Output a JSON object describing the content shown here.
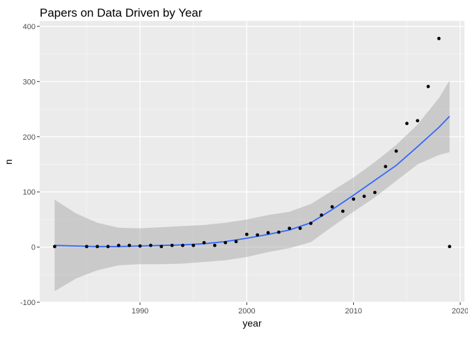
{
  "chart_data": {
    "type": "scatter",
    "title": "Papers on Data Driven by Year",
    "xlabel": "year",
    "ylabel": "n",
    "xlim": [
      1980.6,
      2020.4
    ],
    "ylim": [
      -100,
      410
    ],
    "x_ticks": [
      1990,
      2000,
      2010,
      2020
    ],
    "y_ticks": [
      -100,
      0,
      100,
      200,
      300,
      400
    ],
    "grid": true,
    "legend": "none",
    "colors": {
      "panel": "#ebebeb",
      "grid_major": "#ffffff",
      "grid_minor": "#f5f5f5",
      "points": "#000000",
      "smooth_line": "#3366ff",
      "ribbon": "#999999"
    },
    "points": [
      {
        "x": 1982,
        "y": 1
      },
      {
        "x": 1985,
        "y": 1
      },
      {
        "x": 1986,
        "y": 1
      },
      {
        "x": 1987,
        "y": 1
      },
      {
        "x": 1988,
        "y": 3
      },
      {
        "x": 1989,
        "y": 3
      },
      {
        "x": 1990,
        "y": 2
      },
      {
        "x": 1991,
        "y": 3
      },
      {
        "x": 1992,
        "y": 1
      },
      {
        "x": 1993,
        "y": 3
      },
      {
        "x": 1994,
        "y": 3
      },
      {
        "x": 1995,
        "y": 3
      },
      {
        "x": 1996,
        "y": 8
      },
      {
        "x": 1997,
        "y": 3
      },
      {
        "x": 1998,
        "y": 8
      },
      {
        "x": 1999,
        "y": 10
      },
      {
        "x": 2000,
        "y": 23
      },
      {
        "x": 2001,
        "y": 22
      },
      {
        "x": 2002,
        "y": 26
      },
      {
        "x": 2003,
        "y": 27
      },
      {
        "x": 2004,
        "y": 34
      },
      {
        "x": 2005,
        "y": 34
      },
      {
        "x": 2006,
        "y": 43
      },
      {
        "x": 2007,
        "y": 58
      },
      {
        "x": 2008,
        "y": 73
      },
      {
        "x": 2009,
        "y": 65
      },
      {
        "x": 2010,
        "y": 87
      },
      {
        "x": 2011,
        "y": 92
      },
      {
        "x": 2012,
        "y": 99
      },
      {
        "x": 2013,
        "y": 146
      },
      {
        "x": 2014,
        "y": 174
      },
      {
        "x": 2015,
        "y": 224
      },
      {
        "x": 2016,
        "y": 229
      },
      {
        "x": 2017,
        "y": 291
      },
      {
        "x": 2018,
        "y": 378
      },
      {
        "x": 2019,
        "y": 1
      }
    ],
    "smooth": [
      {
        "x": 1982,
        "y": 3,
        "lo": -80,
        "hi": 86
      },
      {
        "x": 1984,
        "y": 2,
        "lo": -57,
        "hi": 61
      },
      {
        "x": 1986,
        "y": 1,
        "lo": -42,
        "hi": 44
      },
      {
        "x": 1988,
        "y": 1,
        "lo": -33,
        "hi": 35
      },
      {
        "x": 1990,
        "y": 2,
        "lo": -31,
        "hi": 34
      },
      {
        "x": 1992,
        "y": 3,
        "lo": -31,
        "hi": 36
      },
      {
        "x": 1994,
        "y": 4,
        "lo": -30,
        "hi": 38
      },
      {
        "x": 1996,
        "y": 6,
        "lo": -27,
        "hi": 40
      },
      {
        "x": 1998,
        "y": 10,
        "lo": -24,
        "hi": 44
      },
      {
        "x": 2000,
        "y": 16,
        "lo": -18,
        "hi": 50
      },
      {
        "x": 2002,
        "y": 23,
        "lo": -9,
        "hi": 58
      },
      {
        "x": 2004,
        "y": 31,
        "lo": -2,
        "hi": 64
      },
      {
        "x": 2006,
        "y": 44,
        "lo": 9,
        "hi": 78
      },
      {
        "x": 2008,
        "y": 68,
        "lo": 37,
        "hi": 102
      },
      {
        "x": 2010,
        "y": 94,
        "lo": 64,
        "hi": 126
      },
      {
        "x": 2012,
        "y": 121,
        "lo": 90,
        "hi": 154
      },
      {
        "x": 2014,
        "y": 148,
        "lo": 120,
        "hi": 185
      },
      {
        "x": 2016,
        "y": 182,
        "lo": 150,
        "hi": 222
      },
      {
        "x": 2018,
        "y": 217,
        "lo": 167,
        "hi": 270
      },
      {
        "x": 2019,
        "y": 237,
        "lo": 172,
        "hi": 302
      }
    ]
  }
}
